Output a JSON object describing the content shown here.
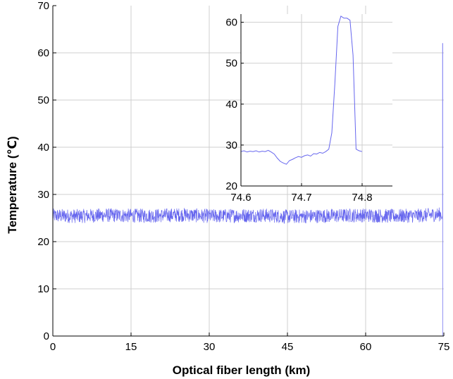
{
  "chart_data": [
    {
      "id": "main",
      "type": "line",
      "xlabel": "Optical fiber length (km)",
      "ylabel": "Temperature (℃)",
      "xlim": [
        0,
        75
      ],
      "ylim": [
        0,
        70
      ],
      "xticks": [
        0,
        15,
        30,
        45,
        60,
        75
      ],
      "xtick_labels": [
        "0",
        "15",
        "30",
        "45",
        "60",
        "75"
      ],
      "yticks": [
        0,
        10,
        20,
        30,
        40,
        50,
        60,
        70
      ],
      "ytick_labels": [
        "0",
        "10",
        "20",
        "30",
        "40",
        "50",
        "60",
        "70"
      ],
      "grid": true,
      "series": [
        {
          "color": "#6666ee",
          "baseline": 25.5,
          "noise_amplitude": 1.5,
          "x_end": 74.6,
          "hotspot": {
            "x": [
              74.75,
              74.78
            ],
            "peak": 62
          },
          "fiber_end_x": 74.8,
          "x": [
            0,
            5,
            10,
            15,
            20,
            25,
            30,
            35,
            40,
            45,
            50,
            55,
            60,
            65,
            70,
            74.6
          ],
          "y": [
            25.5,
            25.4,
            25.6,
            25.5,
            25.5,
            25.7,
            25.4,
            25.5,
            25.6,
            25.3,
            25.4,
            25.5,
            25.6,
            25.4,
            25.5,
            25.8
          ]
        }
      ]
    },
    {
      "id": "inset",
      "type": "line",
      "xlim": [
        74.6,
        74.85
      ],
      "ylim": [
        20,
        62
      ],
      "xticks": [
        74.6,
        74.7,
        74.8
      ],
      "xtick_labels": [
        "74.6",
        "74.7",
        "74.8"
      ],
      "yticks": [
        20,
        30,
        40,
        50,
        60
      ],
      "ytick_labels": [
        "20",
        "30",
        "40",
        "50",
        "60"
      ],
      "grid": true,
      "series": [
        {
          "color": "#6666ee",
          "x": [
            74.6,
            74.605,
            74.61,
            74.615,
            74.62,
            74.625,
            74.63,
            74.635,
            74.64,
            74.645,
            74.65,
            74.655,
            74.66,
            74.665,
            74.67,
            74.675,
            74.68,
            74.685,
            74.69,
            74.695,
            74.7,
            74.705,
            74.71,
            74.715,
            74.72,
            74.725,
            74.73,
            74.735,
            74.74,
            74.745,
            74.75,
            74.755,
            74.76,
            74.765,
            74.77,
            74.775,
            74.78,
            74.785,
            74.79,
            74.795,
            74.8
          ],
          "y": [
            28.4,
            28.6,
            28.3,
            28.5,
            28.4,
            28.6,
            28.3,
            28.5,
            28.4,
            28.7,
            28.3,
            27.8,
            26.8,
            26.0,
            25.6,
            25.3,
            26.2,
            26.5,
            26.9,
            27.2,
            27.0,
            27.4,
            27.6,
            27.3,
            27.9,
            27.8,
            28.2,
            28.0,
            28.4,
            29.0,
            33.0,
            45.0,
            59.0,
            61.5,
            61.0,
            61.0,
            60.5,
            52.0,
            29.0,
            28.6,
            28.4
          ]
        }
      ]
    }
  ]
}
